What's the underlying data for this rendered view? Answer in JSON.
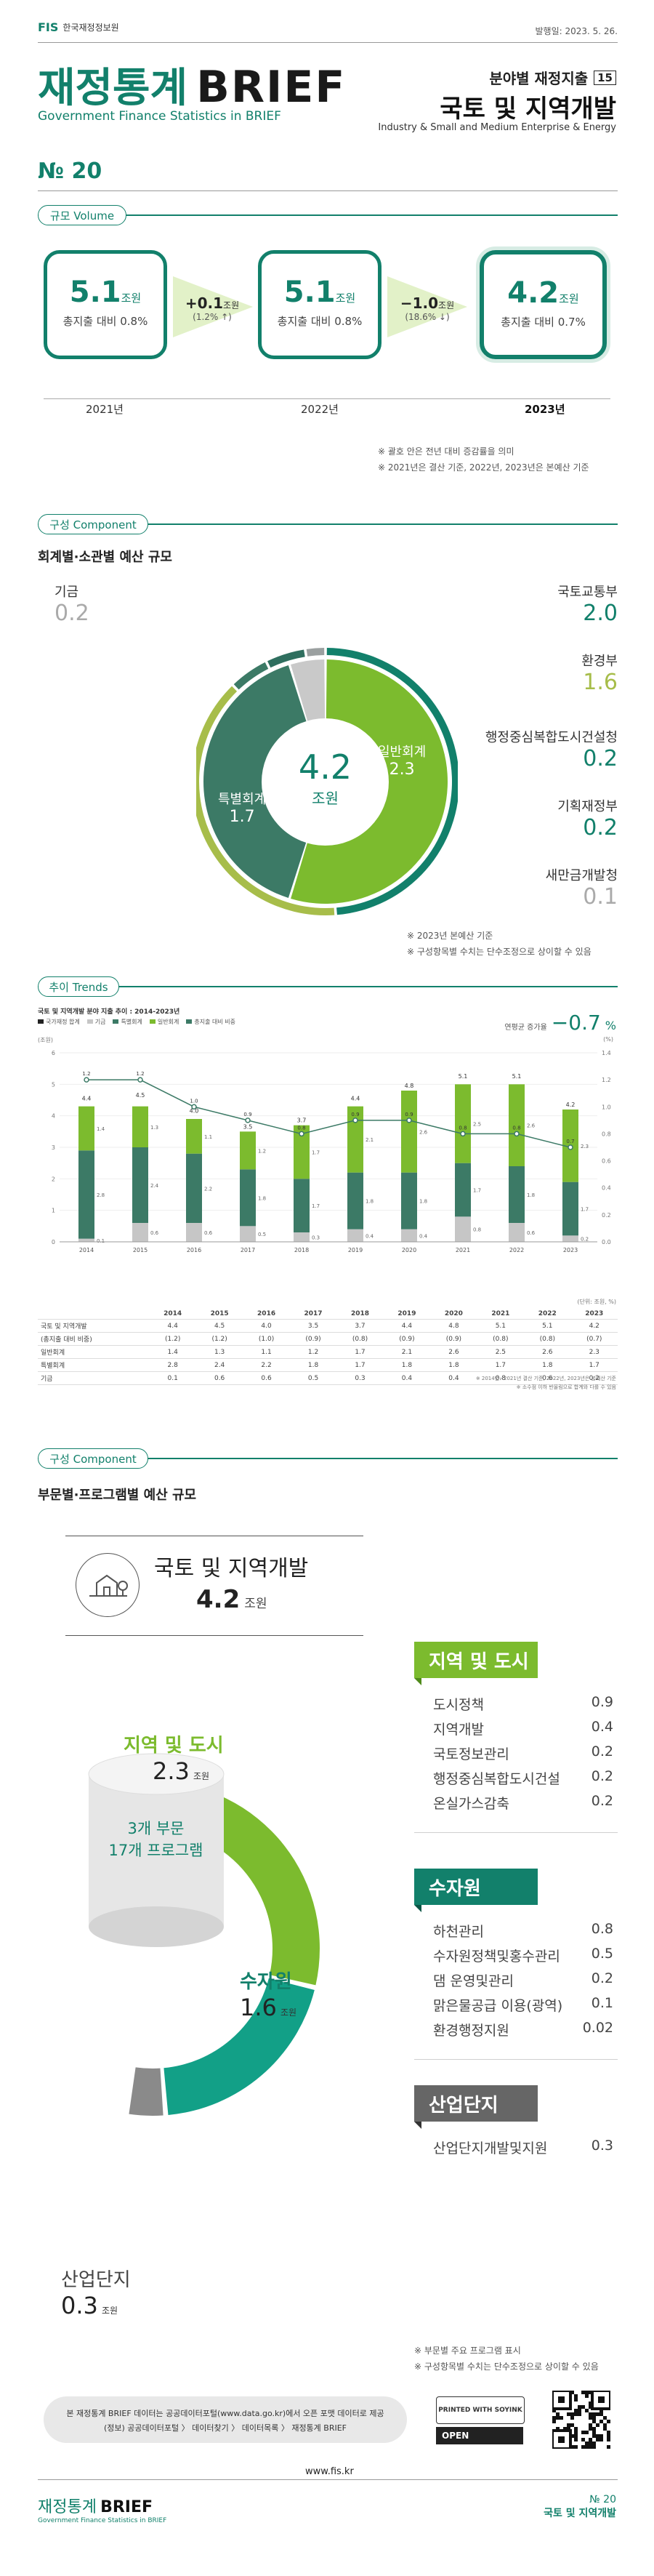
{
  "header": {
    "org": "한국재정정보원",
    "date": "발행일: 2023. 5. 26.",
    "title_kr": "재정통계",
    "title_en_big": "BRIEF",
    "subtitle_en": "Government Finance Statistics in BRIEF",
    "series_label": "분야별 재정지출",
    "series_no": "15",
    "topic_kr": "국토 및 지역개발",
    "topic_en": "Industry & Small and Medium Enterprise & Energy",
    "issue": "№ 20"
  },
  "volume": {
    "tag": "규모 Volume",
    "boxes": [
      {
        "value": "5.1",
        "unit": "조원",
        "sub": "총지출 대비 0.8%",
        "year": "2021년"
      },
      {
        "value": "5.1",
        "unit": "조원",
        "sub": "총지출 대비 0.8%",
        "year": "2022년"
      },
      {
        "value": "4.2",
        "unit": "조원",
        "sub": "총지출 대비 0.7%",
        "year": "2023년"
      }
    ],
    "changes": [
      {
        "value": "+0.1",
        "unit": "조원",
        "pct": "(1.2% ↑)"
      },
      {
        "value": "−1.0",
        "unit": "조원",
        "pct": "(18.6% ↓)"
      }
    ],
    "notes": [
      "※ 괄호 안은 전년 대비 증감률을 의미",
      "※ 2021년은 결산 기준, 2022년, 2023년은 본예산 기준"
    ]
  },
  "component1": {
    "tag": "구성 Component",
    "title": "회계별·소관별 예산 규모",
    "center_value": "4.2",
    "center_unit": "조원",
    "inner": [
      {
        "name": "일반회계",
        "value": "2.3"
      },
      {
        "name": "특별회계",
        "value": "1.7"
      }
    ],
    "left": [
      {
        "name": "기금",
        "value": "0.2"
      }
    ],
    "right": [
      {
        "name": "국토교통부",
        "value": "2.0"
      },
      {
        "name": "환경부",
        "value": "1.6"
      },
      {
        "name": "행정중심복합도시건설청",
        "value": "0.2"
      },
      {
        "name": "기획재정부",
        "value": "0.2"
      },
      {
        "name": "새만금개발청",
        "value": "0.1"
      }
    ],
    "notes": [
      "※ 2023년 본예산 기준",
      "※ 구성항목별 수치는 단수조정으로 상이할 수 있음"
    ]
  },
  "trends": {
    "tag": "추이 Trends",
    "chart_caption": "국토 및 지역개발 분야 지출 추이 : 2014-2023년",
    "legend": [
      "국가재정 합계",
      "기금",
      "특별회계",
      "일반회계",
      "총지출 대비 비중"
    ],
    "left_unit": "(조원)",
    "right_unit": "(%)",
    "avg_label": "연평균 증가율",
    "avg_value": "−0.7",
    "avg_unit": "%",
    "unit_note": "(단위: 조원, %)",
    "notes": [
      "※ 2014년~2021년 결산 기준, 2022년, 2023년은 본예산 기준",
      "※ 소수점 이하 반올림으로 합계와 다를 수 있음"
    ],
    "table_rows": [
      {
        "label": "국토 및 지역개발",
        "vals": [
          "4.4",
          "4.5",
          "4.0",
          "3.5",
          "3.7",
          "4.4",
          "4.8",
          "5.1",
          "5.1",
          "4.2"
        ]
      },
      {
        "label": "(총지출 대비 비중)",
        "vals": [
          "(1.2)",
          "(1.2)",
          "(1.0)",
          "(0.9)",
          "(0.8)",
          "(0.9)",
          "(0.9)",
          "(0.8)",
          "(0.8)",
          "(0.7)"
        ]
      },
      {
        "label": "일반회계",
        "vals": [
          "1.4",
          "1.3",
          "1.1",
          "1.2",
          "1.7",
          "2.1",
          "2.6",
          "2.5",
          "2.6",
          "2.3"
        ]
      },
      {
        "label": "특별회계",
        "vals": [
          "2.8",
          "2.4",
          "2.2",
          "1.8",
          "1.7",
          "1.8",
          "1.8",
          "1.7",
          "1.8",
          "1.7"
        ]
      },
      {
        "label": "기금",
        "vals": [
          "0.1",
          "0.6",
          "0.6",
          "0.5",
          "0.3",
          "0.4",
          "0.4",
          "0.8",
          "0.6",
          "0.2"
        ]
      }
    ]
  },
  "chart_data": {
    "type": "bar",
    "title": "국토 및 지역개발 분야 지출 추이 : 2014-2023년",
    "categories": [
      "2014",
      "2015",
      "2016",
      "2017",
      "2018",
      "2019",
      "2020",
      "2021",
      "2022",
      "2023"
    ],
    "series": [
      {
        "name": "기금",
        "values": [
          0.1,
          0.6,
          0.6,
          0.5,
          0.3,
          0.4,
          0.4,
          0.8,
          0.6,
          0.2
        ]
      },
      {
        "name": "특별회계",
        "values": [
          2.8,
          2.4,
          2.2,
          1.8,
          1.7,
          1.8,
          1.8,
          1.7,
          1.8,
          1.7
        ]
      },
      {
        "name": "일반회계",
        "values": [
          1.4,
          1.3,
          1.1,
          1.2,
          1.7,
          2.1,
          2.6,
          2.5,
          2.6,
          2.3
        ]
      },
      {
        "name": "국가재정 합계",
        "values": [
          4.4,
          4.5,
          4.0,
          3.5,
          3.7,
          4.4,
          4.8,
          5.1,
          5.1,
          4.2
        ]
      },
      {
        "name": "총지출 대비 비중",
        "values": [
          1.2,
          1.2,
          1.0,
          0.9,
          0.8,
          0.9,
          0.9,
          0.8,
          0.8,
          0.7
        ],
        "axis": "right"
      }
    ],
    "ylim": [
      0,
      6
    ],
    "y2lim": [
      0,
      1.4
    ],
    "yticks": [
      "0",
      "1",
      "2",
      "3",
      "4",
      "5",
      "6"
    ],
    "y2ticks": [
      "0.0",
      "0.2",
      "0.4",
      "0.6",
      "0.8",
      "1.0",
      "1.2",
      "1.4"
    ],
    "legend_position": "top-left",
    "colors": {
      "기금": "#c6c6c6",
      "특별회계": "#3c7a66",
      "일반회계": "#7cbb2e",
      "line": "#3c7a66"
    }
  },
  "component2": {
    "tag": "구성 Component",
    "title": "부문별·프로그램별 예산 규모",
    "total_name": "국토 및 지역개발",
    "total_value": "4.2",
    "total_unit": "조원",
    "cylinder_line1": "3개 부문",
    "cylinder_line2": "17개 프로그램",
    "sectors": [
      {
        "name": "지역 및 도시",
        "value": "2.3",
        "unit": "조원",
        "programs": [
          {
            "name": "도시정책",
            "value": "0.9"
          },
          {
            "name": "지역개발",
            "value": "0.4"
          },
          {
            "name": "국토정보관리",
            "value": "0.2"
          },
          {
            "name": "행정중심복합도시건설",
            "value": "0.2"
          },
          {
            "name": "온실가스감축",
            "value": "0.2"
          }
        ]
      },
      {
        "name": "수자원",
        "value": "1.6",
        "unit": "조원",
        "programs": [
          {
            "name": "하천관리",
            "value": "0.8"
          },
          {
            "name": "수자원정책및홍수관리",
            "value": "0.5"
          },
          {
            "name": "댐 운영및관리",
            "value": "0.2"
          },
          {
            "name": "맑은물공급 이용(광역)",
            "value": "0.1"
          },
          {
            "name": "환경행정지원",
            "value": "0.02"
          }
        ]
      },
      {
        "name": "산업단지",
        "value": "0.3",
        "unit": "조원",
        "programs": [
          {
            "name": "산업단지개발및지원",
            "value": "0.3"
          }
        ]
      }
    ],
    "notes": [
      "※ 부문별 주요 프로그램 표시",
      "※ 구성항목별 수치는 단수조정으로 상이할 수 있음"
    ]
  },
  "footer": {
    "notice": "본 재정통계 BRIEF 데이터는 공공데이터포털(www.data.go.kr)에서 오픈 포맷 데이터로 제공",
    "notice2": "(정보) 공공데이터포털 〉 데이터찾기 〉 데이터목록 〉 재정통계 BRIEF",
    "badge1": "PRINTED WITH SOYINK",
    "badge2": "OPEN",
    "url": "www.fis.kr",
    "brand_kr": "재정통계",
    "brand_en": "BRIEF",
    "brand_sub": "Government Finance Statistics in BRIEF",
    "issue": "№ 20",
    "topic": "국토 및 지역개발"
  }
}
